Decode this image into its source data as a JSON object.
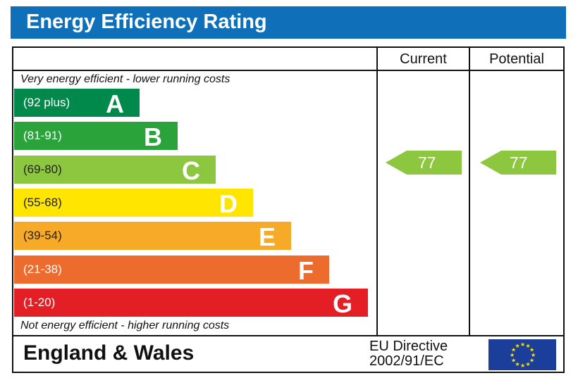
{
  "title": "Energy Efficiency Rating",
  "columns": {
    "current": "Current",
    "potential": "Potential"
  },
  "notes": {
    "top": "Very energy efficient - lower running costs",
    "bottom": "Not energy efficient - higher running costs"
  },
  "footer": {
    "region": "England & Wales",
    "directive_line1": "EU Directive",
    "directive_line2": "2002/91/EC",
    "flag_icon": "eu-flag-icon"
  },
  "chart_data": {
    "type": "bar",
    "title": "Energy Efficiency Rating",
    "bands": [
      {
        "letter": "A",
        "range": "(92 plus)",
        "color": "#00894a"
      },
      {
        "letter": "B",
        "range": "(81-91)",
        "color": "#2aa33b"
      },
      {
        "letter": "C",
        "range": "(69-80)",
        "color": "#8dc63f"
      },
      {
        "letter": "D",
        "range": "(55-68)",
        "color": "#ffe500"
      },
      {
        "letter": "E",
        "range": "(39-54)",
        "color": "#f7a928"
      },
      {
        "letter": "F",
        "range": "(21-38)",
        "color": "#ed6b2d"
      },
      {
        "letter": "G",
        "range": "(1-20)",
        "color": "#e31e25"
      }
    ],
    "current": {
      "value": "77",
      "band": "C",
      "color": "#8dc63f"
    },
    "potential": {
      "value": "77",
      "band": "C",
      "color": "#8dc63f"
    }
  }
}
